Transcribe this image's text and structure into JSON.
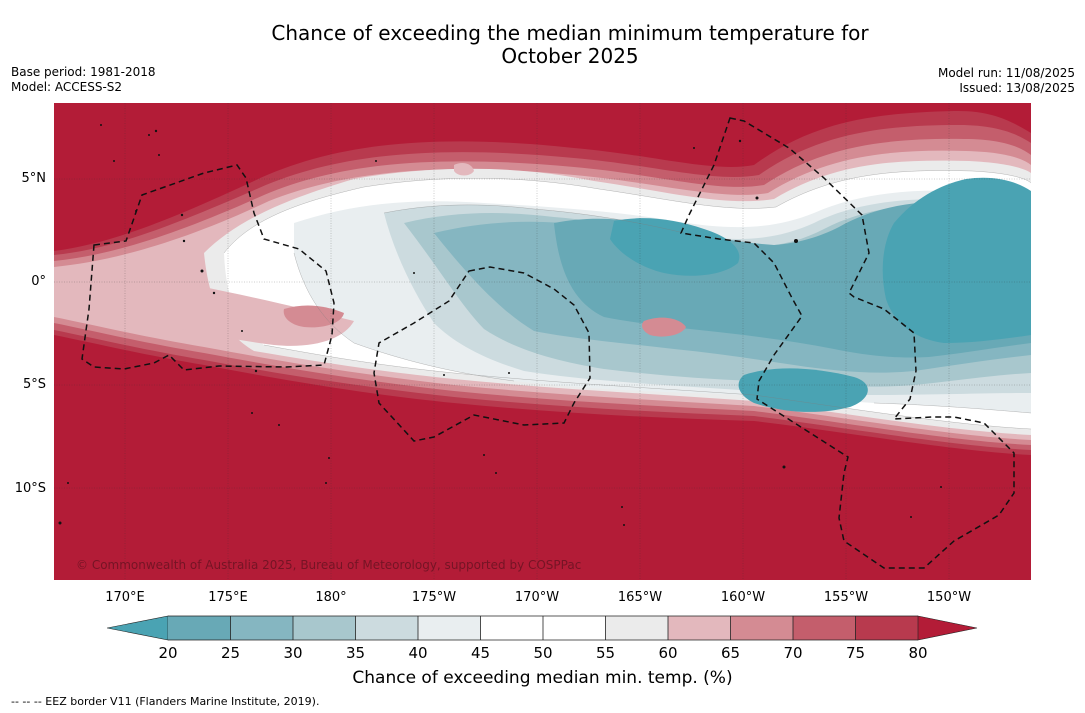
{
  "title": {
    "line1": "Chance of exceeding the median minimum temperature for",
    "line2": "October 2025"
  },
  "meta": {
    "base_period": "Base period: 1981-2018",
    "model": "Model: ACCESS-S2",
    "model_run": "Model run: 11/08/2025",
    "issued": "Issued: 13/08/2025"
  },
  "map": {
    "lat_labels": [
      "5°N",
      "0°",
      "5°S",
      "10°S"
    ],
    "lon_labels": [
      "170°E",
      "175°E",
      "180°",
      "175°W",
      "170°W",
      "165°W",
      "160°W",
      "155°W",
      "150°W"
    ],
    "copyright": "© Commonwealth of Australia 2025, Bureau of Meteorology, supported by COSPPac",
    "colors": {
      "above_80": "#b31c37",
      "c75": "#b83a4e",
      "c70": "#c45e6c",
      "c65": "#d48b93",
      "c60": "#e3b8bd",
      "c55": "#ebebeb",
      "c50": "#ffffff",
      "c45": "#e9eef0",
      "c40": "#ccdbdf",
      "c35": "#a8c7cd",
      "c30": "#85b6c1",
      "c25": "#68a9b6",
      "below_20": "#4aa3b3"
    }
  },
  "legend": {
    "ticks": [
      "20",
      "25",
      "30",
      "35",
      "40",
      "45",
      "50",
      "55",
      "60",
      "65",
      "70",
      "75",
      "80"
    ],
    "label": "Chance of exceeding median min. temp. (%)"
  },
  "footnote": "--  --  -- EEZ border V11 (Flanders Marine Institute, 2019)."
}
